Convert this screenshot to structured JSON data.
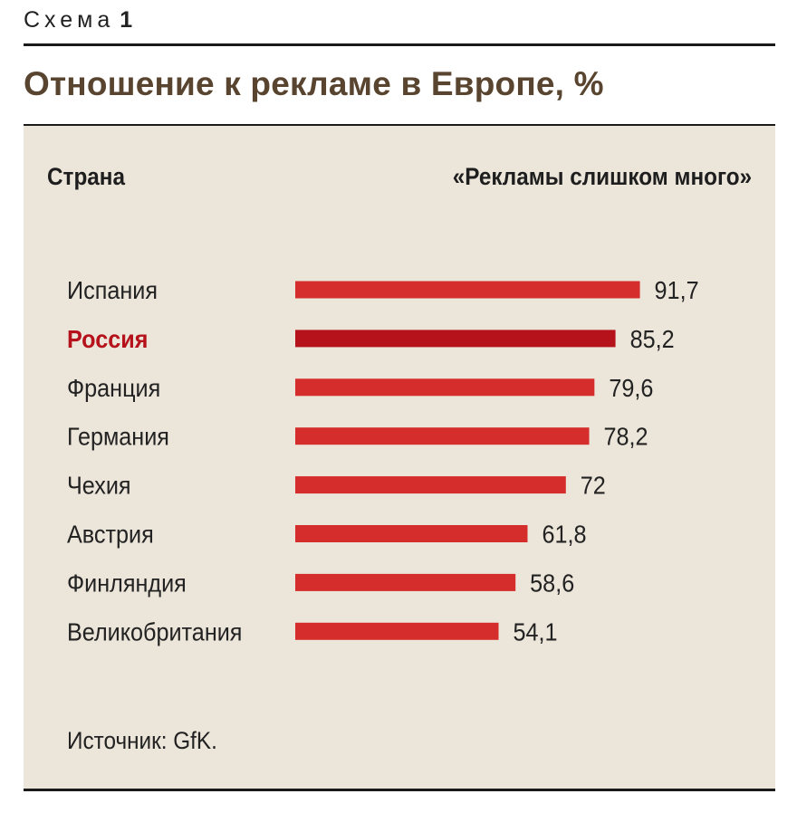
{
  "header": {
    "schema_label": "Схема",
    "schema_number": "1"
  },
  "title": "Отношение к рекламе в Европе, %",
  "column_headers": {
    "left": "Страна",
    "right": "«Рекламы слишком много»"
  },
  "colors": {
    "bar": "#d42d2b",
    "bar_highlight": "#b5121b",
    "label_highlight": "#b5121b",
    "title": "#58442f",
    "panel": "#ece5da"
  },
  "chart_data": {
    "type": "bar",
    "orientation": "horizontal",
    "title": "Отношение к рекламе в Европе, %",
    "categories": [
      "Испания",
      "Россия",
      "Франция",
      "Германия",
      "Чехия",
      "Австрия",
      "Финляндия",
      "Великобритания"
    ],
    "values": [
      91.7,
      85.2,
      79.6,
      78.2,
      72,
      61.8,
      58.6,
      54.1
    ],
    "value_labels": [
      "91,7",
      "85,2",
      "79,6",
      "78,2",
      "72",
      "61,8",
      "58,6",
      "54,1"
    ],
    "highlight": "Россия",
    "grid": false
  },
  "source": "Источник: GfK."
}
